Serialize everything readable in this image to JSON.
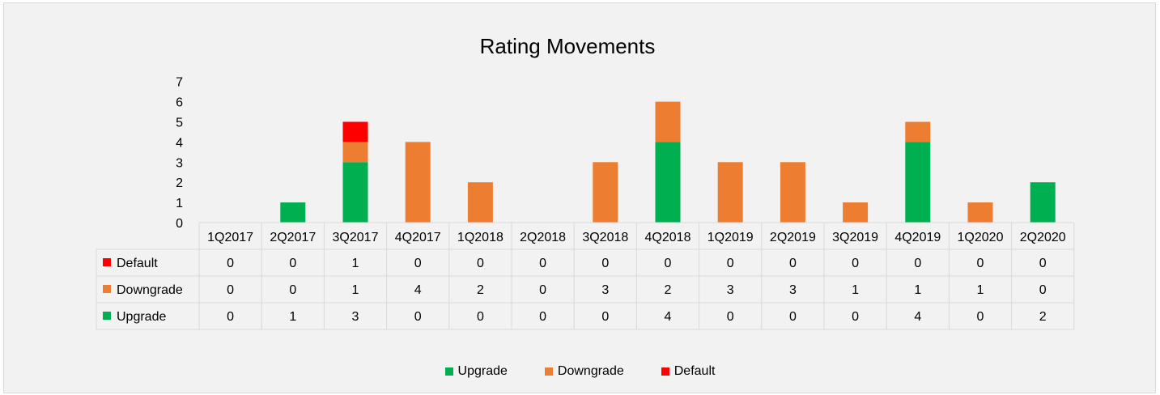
{
  "chart_data": {
    "type": "bar",
    "stacked": true,
    "title": "Rating Movements",
    "categories": [
      "1Q2017",
      "2Q2017",
      "3Q2017",
      "4Q2017",
      "1Q2018",
      "2Q2018",
      "3Q2018",
      "4Q2018",
      "1Q2019",
      "2Q2019",
      "3Q2019",
      "4Q2019",
      "1Q2020",
      "2Q2020"
    ],
    "ylim": [
      0,
      7
    ],
    "yticks": [
      "0",
      "1",
      "2",
      "3",
      "4",
      "5",
      "6",
      "7"
    ],
    "grid": false,
    "legend_position": "bottom",
    "data_table": true,
    "series": [
      {
        "name": "Upgrade",
        "color": "#00b050",
        "values": [
          0,
          1,
          3,
          0,
          0,
          0,
          0,
          4,
          0,
          0,
          0,
          4,
          0,
          2
        ]
      },
      {
        "name": "Downgrade",
        "color": "#ed7d31",
        "values": [
          0,
          0,
          1,
          4,
          2,
          0,
          3,
          2,
          3,
          3,
          1,
          1,
          1,
          0
        ]
      },
      {
        "name": "Default",
        "color": "#ff0000",
        "values": [
          0,
          0,
          1,
          0,
          0,
          0,
          0,
          0,
          0,
          0,
          0,
          0,
          0,
          0
        ]
      }
    ],
    "table_row_order": [
      "Default",
      "Downgrade",
      "Upgrade"
    ]
  }
}
